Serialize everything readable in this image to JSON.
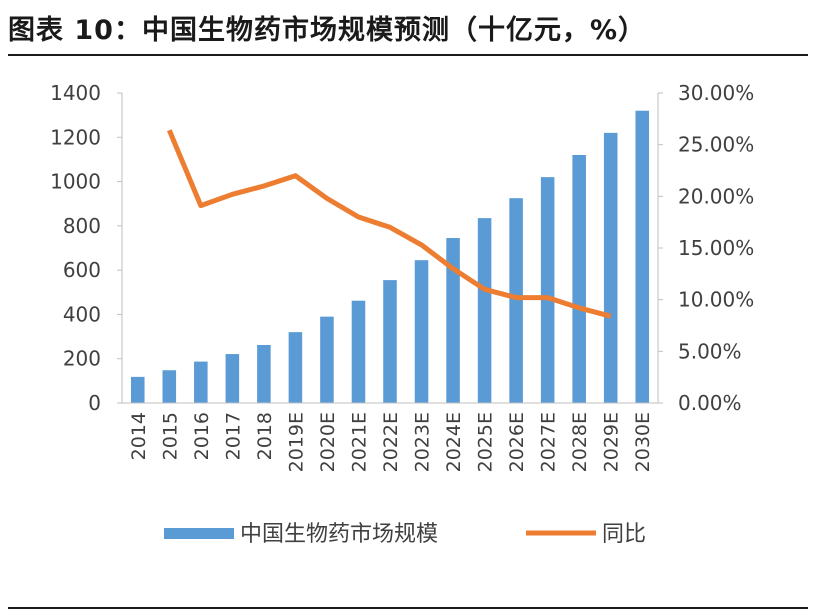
{
  "figure": {
    "title": "图表 10：中国生物药市场规模预测（十亿元，%）"
  },
  "colors": {
    "bar": "#5b9bd5",
    "line": "#ed7d31",
    "axis": "#bfbfbf",
    "text": "#404040",
    "rule": "#1a1a1a"
  },
  "chart_data": {
    "type": "bar",
    "title": "图表 10：中国生物药市场规模预测（十亿元，%）",
    "categories": [
      "2014",
      "2015",
      "2016",
      "2017",
      "2018",
      "2019E",
      "2020E",
      "2021E",
      "2022E",
      "2023E",
      "2024E",
      "2025E",
      "2026E",
      "2027E",
      "2028E",
      "2029E",
      "2030E"
    ],
    "series": [
      {
        "name": "中国生物药市场规模",
        "kind": "bar",
        "axis": "left",
        "values": [
          118,
          148,
          187,
          221,
          262,
          320,
          390,
          462,
          555,
          645,
          745,
          835,
          925,
          1020,
          1120,
          1220,
          1320
        ]
      },
      {
        "name": "同比",
        "kind": "line",
        "axis": "right",
        "values": [
          null,
          0.264,
          0.191,
          0.202,
          0.21,
          0.22,
          0.198,
          0.18,
          0.17,
          0.153,
          0.13,
          0.11,
          0.102,
          0.102,
          0.092,
          0.084,
          null
        ]
      }
    ],
    "y_left": {
      "min": 0,
      "max": 1400,
      "ticks": [
        0,
        200,
        400,
        600,
        800,
        1000,
        1200,
        1400
      ],
      "tick_labels": [
        "0",
        "200",
        "400",
        "600",
        "800",
        "1000",
        "1200",
        "1400"
      ]
    },
    "y_right": {
      "min": 0,
      "max": 0.3,
      "ticks": [
        0,
        0.05,
        0.1,
        0.15,
        0.2,
        0.25,
        0.3
      ],
      "tick_labels": [
        "0.00%",
        "5.00%",
        "10.00%",
        "15.00%",
        "20.00%",
        "25.00%",
        "30.00%"
      ]
    },
    "legend": [
      {
        "label": "中国生物药市场规模",
        "kind": "bar"
      },
      {
        "label": "同比",
        "kind": "line"
      }
    ],
    "legend_position": "bottom",
    "grid": false,
    "xlabel": "",
    "ylabel": ""
  }
}
